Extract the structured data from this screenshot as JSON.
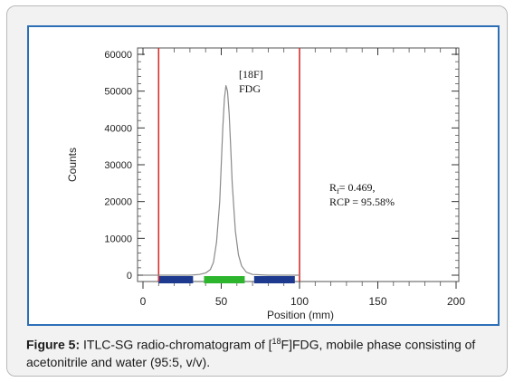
{
  "chart_data": {
    "type": "line",
    "title": "",
    "xlabel": "Position (mm)",
    "ylabel": "Counts",
    "xlim": [
      0,
      200
    ],
    "ylim": [
      0,
      60000
    ],
    "x_ticks": [
      0,
      50,
      100,
      150,
      200
    ],
    "y_ticks": [
      0,
      10000,
      20000,
      30000,
      40000,
      50000,
      60000
    ],
    "series": [
      {
        "x": [
          0,
          10,
          20,
          30,
          36,
          40,
          43,
          45,
          47,
          49,
          50,
          51,
          52,
          53,
          54,
          55,
          56,
          57,
          59,
          61,
          63,
          66,
          70,
          80,
          90,
          100
        ],
        "y": [
          0,
          0,
          0,
          0,
          200,
          600,
          1500,
          3500,
          9000,
          20000,
          30000,
          40000,
          48000,
          51500,
          50000,
          44000,
          35000,
          25000,
          12000,
          5500,
          2500,
          800,
          200,
          0,
          0,
          0
        ]
      }
    ],
    "vertical_lines": [
      10,
      100
    ],
    "bands": [
      {
        "x_start": 10,
        "x_end": 32,
        "color": "#1d3a8f"
      },
      {
        "x_start": 39,
        "x_end": 65,
        "color": "#2db52d"
      },
      {
        "x_start": 71,
        "x_end": 97,
        "color": "#1d3a8f"
      }
    ],
    "colors": {
      "trace": "#8a8a8a",
      "boundary": "#d62f2f",
      "frame": "#2d6fb7"
    },
    "annotations": {
      "peak_label_line1": "[18F]",
      "peak_label_line2": "FDG",
      "rf_text": "= 0.469,",
      "rcp_text": "RCP = 95.58%"
    }
  },
  "caption": {
    "label": "Figure 5:",
    "text_part1": " ITLC-SG radio-chromatogram of [",
    "superscript": "18",
    "text_part2": "F]FDG, mobile phase consisting of acetonitrile and water (95:5, v/v)."
  }
}
